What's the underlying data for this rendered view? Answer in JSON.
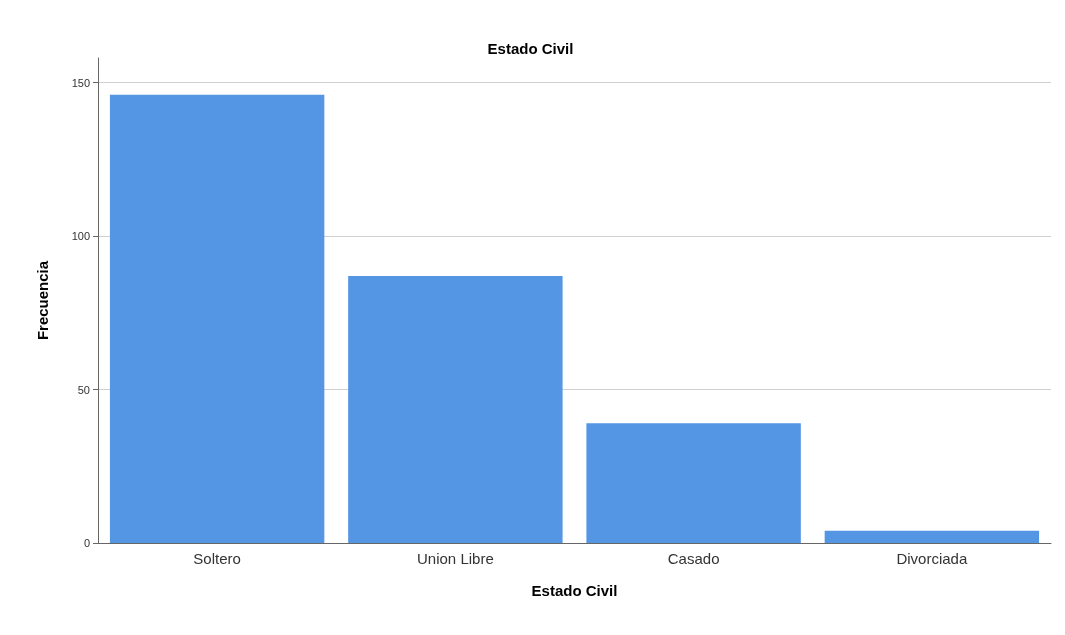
{
  "chart_data": {
    "type": "bar",
    "title": "Estado Civil",
    "xlabel": "Estado Civil",
    "ylabel": "Frecuencia",
    "categories": [
      "Soltero",
      "Union Libre",
      "Casado",
      "Divorciada"
    ],
    "values": [
      146,
      87,
      39,
      4
    ],
    "color": "#5596e4",
    "ylim": [
      0,
      158
    ],
    "yticks": [
      0,
      50,
      100,
      150
    ],
    "grid": "y"
  }
}
